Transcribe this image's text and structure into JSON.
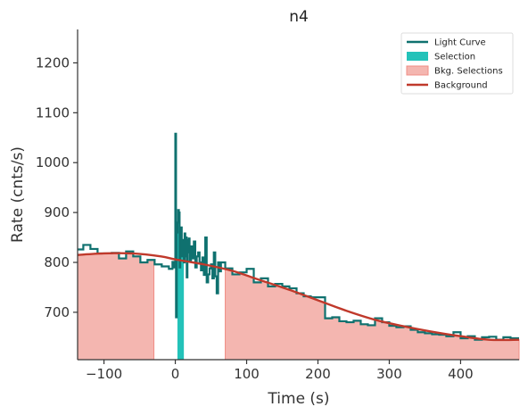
{
  "chart_data": {
    "type": "line",
    "title": "n4",
    "xlabel": "Time (s)",
    "ylabel": "Rate (cnts/s)",
    "xlim": [
      -137,
      482
    ],
    "ylim": [
      605,
      1267
    ],
    "xticks": [
      -100,
      0,
      100,
      200,
      300,
      400
    ],
    "xtick_labels": [
      "−100",
      "0",
      "100",
      "200",
      "300",
      "400"
    ],
    "yticks": [
      700,
      800,
      900,
      1000,
      1100,
      1200
    ],
    "ytick_labels": [
      "700",
      "800",
      "900",
      "1000",
      "1100",
      "1200"
    ],
    "grid": false,
    "legend_position": "top-right",
    "colors": {
      "light_curve": "#0f716f",
      "selection": "#23c2b9",
      "bkg_selection": "#f4b6b0",
      "bkg_selection_edge": "#f08d86",
      "background": "#c0392b",
      "axes": "#333333"
    },
    "legend": [
      {
        "label": "Light Curve",
        "kind": "line",
        "color_key": "light_curve"
      },
      {
        "label": "Selection",
        "kind": "patch",
        "color_key": "selection"
      },
      {
        "label": "Bkg. Selections",
        "kind": "patch",
        "color_key": "bkg_selection"
      },
      {
        "label": "Background",
        "kind": "line",
        "color_key": "background"
      }
    ],
    "selection_interval": [
      3,
      12
    ],
    "bkg_selections": [
      [
        -137,
        -30
      ],
      [
        70,
        482
      ]
    ],
    "background_curve": {
      "x": [
        -137,
        -100,
        -60,
        -20,
        0,
        40,
        80,
        120,
        160,
        200,
        240,
        280,
        320,
        360,
        400,
        440,
        482
      ],
      "y": [
        815,
        818,
        818,
        812,
        806,
        796,
        783,
        764,
        745,
        724,
        703,
        685,
        672,
        661,
        652,
        645,
        645
      ]
    },
    "light_curve": {
      "edges": [
        -137,
        -129,
        -119,
        -109,
        -89,
        -79,
        -69,
        -59,
        -49,
        -39,
        -29,
        -19,
        -9,
        -4,
        -2,
        0,
        1,
        2,
        3,
        4,
        5,
        6,
        7,
        8,
        9,
        10,
        11,
        12,
        13,
        14,
        15,
        16,
        17,
        18,
        19,
        20,
        22,
        24,
        26,
        28,
        30,
        32,
        34,
        36,
        38,
        40,
        42,
        44,
        46,
        48,
        50,
        52,
        54,
        56,
        58,
        60,
        62,
        64,
        70,
        80,
        90,
        100,
        110,
        120,
        130,
        140,
        150,
        160,
        170,
        180,
        190,
        200,
        210,
        220,
        230,
        240,
        250,
        260,
        270,
        280,
        290,
        300,
        310,
        320,
        330,
        340,
        350,
        360,
        370,
        380,
        390,
        400,
        410,
        420,
        430,
        440,
        450,
        460,
        470,
        482
      ],
      "rates": [
        826,
        835,
        827,
        818,
        819,
        808,
        822,
        812,
        800,
        805,
        796,
        792,
        787,
        801,
        790,
        1058,
        690,
        860,
        880,
        905,
        900,
        790,
        820,
        870,
        812,
        845,
        825,
        800,
        858,
        812,
        850,
        770,
        845,
        820,
        848,
        802,
        832,
        808,
        842,
        790,
        812,
        820,
        800,
        784,
        810,
        775,
        850,
        760,
        776,
        788,
        796,
        768,
        820,
        772,
        738,
        800,
        782,
        800,
        788,
        776,
        780,
        787,
        760,
        768,
        752,
        757,
        752,
        748,
        738,
        732,
        730,
        730,
        688,
        690,
        682,
        680,
        683,
        676,
        674,
        688,
        680,
        673,
        670,
        672,
        665,
        660,
        658,
        656,
        655,
        652,
        660,
        648,
        652,
        645,
        650,
        651,
        645,
        650,
        648
      ]
    }
  }
}
